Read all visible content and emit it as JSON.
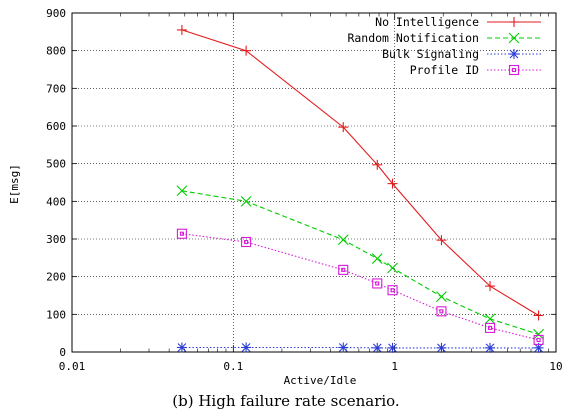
{
  "caption": "(b) High failure rate scenario.",
  "chart_data": {
    "type": "line",
    "xscale": "log",
    "xlim": [
      0.01,
      10
    ],
    "ylim": [
      0,
      900
    ],
    "xlabel": "Active/Idle",
    "ylabel": "E[msg]",
    "x_ticks": [
      0.01,
      0.1,
      1,
      10
    ],
    "x_tick_labels": [
      "0.01",
      "0.1",
      "1",
      "10"
    ],
    "y_ticks": [
      0,
      100,
      200,
      300,
      400,
      500,
      600,
      700,
      800,
      900
    ],
    "y_tick_labels": [
      "0",
      "100",
      "200",
      "300",
      "400",
      "500",
      "600",
      "700",
      "800",
      "900"
    ],
    "grid": "major gridlines at x = 0.1 and x = 1, and at every y tick",
    "legend_position": "top-right",
    "series": [
      {
        "name": "No Intelligence",
        "color": "#e41a1c",
        "dash": "",
        "marker": "plus",
        "x": [
          0.048,
          0.12,
          0.48,
          0.78,
          0.97,
          1.95,
          3.9,
          7.8
        ],
        "y": [
          855,
          800,
          597,
          497,
          447,
          297,
          175,
          97
        ]
      },
      {
        "name": "Random Notification",
        "color": "#00cc00",
        "dash": "5,3",
        "marker": "cross",
        "x": [
          0.048,
          0.12,
          0.48,
          0.78,
          0.97,
          1.95,
          3.9,
          7.8
        ],
        "y": [
          428,
          400,
          298,
          248,
          223,
          147,
          88,
          47
        ]
      },
      {
        "name": "Bulk Signaling",
        "color": "#2a3cd6",
        "dash": "1.5,2",
        "marker": "star",
        "x": [
          0.048,
          0.12,
          0.48,
          0.78,
          0.97,
          1.95,
          3.9,
          7.8
        ],
        "y": [
          12,
          12,
          12,
          11,
          11,
          11,
          11,
          11
        ]
      },
      {
        "name": "Profile ID",
        "color": "#d81bd8",
        "dash": "1.5,2",
        "marker": "square",
        "x": [
          0.048,
          0.12,
          0.48,
          0.78,
          0.97,
          1.95,
          3.9,
          7.8
        ],
        "y": [
          314,
          292,
          218,
          182,
          164,
          108,
          64,
          32
        ]
      }
    ]
  }
}
